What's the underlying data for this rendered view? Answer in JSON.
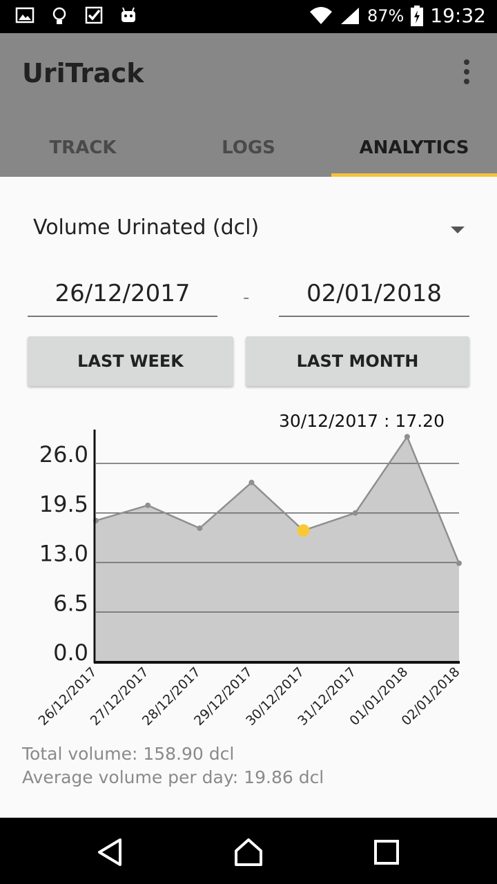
{
  "status_bar": {
    "battery": "87%",
    "time": "19:32",
    "icons": [
      "image-icon",
      "lightbulb-icon",
      "checkbox-icon",
      "android-icon",
      "wifi-icon",
      "signal-icon",
      "battery-charging-icon"
    ]
  },
  "app_bar": {
    "title": "UriTrack",
    "tabs": [
      {
        "label": "TRACK",
        "active": false
      },
      {
        "label": "LOGS",
        "active": false
      },
      {
        "label": "ANALYTICS",
        "active": true
      }
    ]
  },
  "metric": {
    "selected": "Volume Urinated (dcl)"
  },
  "date_range": {
    "from": "26/12/2017",
    "separator": "-",
    "to": "02/01/2018"
  },
  "buttons": {
    "last_week": "LAST WEEK",
    "last_month": "LAST MONTH"
  },
  "chart_data": {
    "type": "area",
    "x": [
      "26/12/2017",
      "27/12/2017",
      "28/12/2017",
      "29/12/2017",
      "30/12/2017",
      "31/12/2017",
      "01/01/2018",
      "02/01/2018"
    ],
    "values": [
      18.5,
      20.5,
      17.5,
      23.5,
      17.2,
      19.5,
      29.5,
      12.9
    ],
    "yticks": [
      "26.0",
      "19.5",
      "13.0",
      "6.5",
      "0.0"
    ],
    "ylim": [
      0,
      30
    ],
    "highlight": {
      "index": 4,
      "label": "30/12/2017 : 17.20"
    },
    "colors": {
      "fill": "#cbcbcb",
      "line": "#8f8f8f",
      "highlight": "#f9c935"
    }
  },
  "stats": {
    "total": "Total volume: 158.90 dcl",
    "average": "Average volume per day: 19.86 dcl"
  }
}
